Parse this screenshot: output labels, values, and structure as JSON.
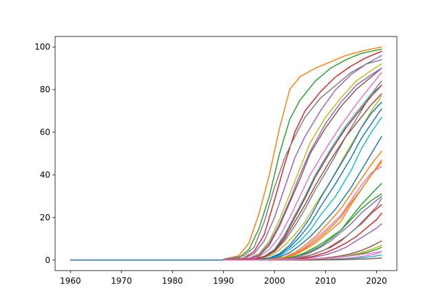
{
  "chart_data": {
    "type": "line",
    "title": "",
    "xlabel": "",
    "ylabel": "",
    "xlim": [
      1957,
      2024
    ],
    "ylim": [
      -4.9,
      104.9
    ],
    "grid": false,
    "legend": "none",
    "xticks": [
      {
        "value": 1960,
        "label": "1960"
      },
      {
        "value": 1970,
        "label": "1970"
      },
      {
        "value": 1980,
        "label": "1980"
      },
      {
        "value": 1990,
        "label": "1990"
      },
      {
        "value": 2000,
        "label": "2000"
      },
      {
        "value": 2010,
        "label": "2010"
      },
      {
        "value": 2020,
        "label": "2020"
      }
    ],
    "yticks": [
      {
        "value": 0,
        "label": "0"
      },
      {
        "value": 20,
        "label": "20"
      },
      {
        "value": 40,
        "label": "40"
      },
      {
        "value": 60,
        "label": "60"
      },
      {
        "value": 80,
        "label": "80"
      },
      {
        "value": 100,
        "label": "100"
      }
    ],
    "colors": [
      "#1f77b4",
      "#ff7f0e",
      "#2ca02c",
      "#d62728",
      "#9467bd",
      "#8c564b",
      "#e377c2",
      "#7f7f7f",
      "#bcbd22",
      "#17becf"
    ],
    "series": [
      {
        "x": [
          1960,
          1990
        ],
        "y": [
          0,
          0
        ]
      },
      {
        "x": [
          1990,
          1993,
          1995,
          1997,
          1999,
          2001,
          2003,
          2005,
          2008,
          2011,
          2014,
          2017,
          2021
        ],
        "y": [
          0.5,
          2,
          8,
          22,
          40,
          62,
          80,
          86,
          90,
          93,
          96,
          98,
          100
        ]
      },
      {
        "x": [
          1990,
          1993,
          1995,
          1997,
          1999,
          2001,
          2003,
          2005,
          2008,
          2011,
          2014,
          2017,
          2021
        ],
        "y": [
          0.3,
          1,
          5,
          15,
          30,
          50,
          66,
          75,
          84,
          90,
          94,
          97,
          99
        ]
      },
      {
        "x": [
          1990,
          1994,
          1996,
          1998,
          2000,
          2002,
          2004,
          2006,
          2009,
          2012,
          2015,
          2018,
          2021
        ],
        "y": [
          0.2,
          1,
          4,
          12,
          28,
          45,
          60,
          70,
          79,
          86,
          91,
          95,
          98
        ]
      },
      {
        "x": [
          1990,
          1994,
          1996,
          1998,
          2000,
          2002,
          2004,
          2006,
          2009,
          2012,
          2015,
          2018,
          2021
        ],
        "y": [
          0.2,
          0.8,
          3,
          9,
          20,
          34,
          48,
          58,
          70,
          80,
          87,
          92,
          96
        ]
      },
      {
        "x": [
          1990,
          1995,
          1997,
          1999,
          2001,
          2003,
          2005,
          2007,
          2010,
          2013,
          2016,
          2019,
          2021
        ],
        "y": [
          0.1,
          0.6,
          2,
          7,
          16,
          27,
          38,
          50,
          62,
          72,
          80,
          86,
          90
        ]
      },
      {
        "x": [
          1990,
          1995,
          1997,
          1999,
          2001,
          2003,
          2005,
          2007,
          2010,
          2013,
          2016,
          2019,
          2021
        ],
        "y": [
          0.1,
          0.5,
          1.5,
          5,
          11,
          20,
          30,
          40,
          52,
          63,
          73,
          82,
          88
        ]
      },
      {
        "x": [
          1990,
          1996,
          1998,
          2000,
          2002,
          2004,
          2006,
          2008,
          2011,
          2014,
          2017,
          2019,
          2021
        ],
        "y": [
          0.1,
          0.4,
          1.2,
          4,
          9,
          16,
          24,
          33,
          45,
          58,
          70,
          78,
          84
        ]
      },
      {
        "x": [
          1990,
          1996,
          1998,
          2000,
          2002,
          2004,
          2006,
          2008,
          2011,
          2014,
          2017,
          2019,
          2021
        ],
        "y": [
          0,
          0.3,
          1,
          3,
          7,
          12,
          18,
          26,
          37,
          50,
          62,
          70,
          77
        ]
      },
      {
        "x": [
          1990,
          1997,
          1999,
          2001,
          2003,
          2005,
          2007,
          2009,
          2012,
          2015,
          2017,
          2019,
          2021
        ],
        "y": [
          0,
          0.3,
          0.8,
          2,
          5,
          9,
          14,
          21,
          30,
          42,
          52,
          60,
          67
        ]
      },
      {
        "x": [
          1990,
          1997,
          1999,
          2001,
          2003,
          2005,
          2007,
          2009,
          2012,
          2015,
          2017,
          2019,
          2021
        ],
        "y": [
          0,
          0.2,
          0.6,
          1.5,
          3.5,
          7,
          11,
          16,
          24,
          34,
          42,
          50,
          58
        ]
      },
      {
        "x": [
          1990,
          1998,
          2000,
          2002,
          2004,
          2006,
          2008,
          2010,
          2013,
          2015,
          2017,
          2019,
          2021
        ],
        "y": [
          0,
          0.2,
          0.5,
          1,
          2.5,
          5,
          8,
          12,
          18,
          26,
          33,
          40,
          46
        ]
      },
      {
        "x": [
          1990,
          1998,
          2000,
          2002,
          2004,
          2006,
          2008,
          2010,
          2013,
          2015,
          2017,
          2019,
          2021
        ],
        "y": [
          0,
          0.1,
          0.3,
          0.8,
          1.8,
          3.5,
          6,
          9,
          14,
          20,
          26,
          31,
          36
        ]
      },
      {
        "x": [
          1990,
          1999,
          2001,
          2003,
          2005,
          2007,
          2009,
          2011,
          2013,
          2015,
          2017,
          2019,
          2021
        ],
        "y": [
          0,
          0.1,
          0.2,
          0.5,
          1.2,
          2.3,
          4,
          6,
          9,
          13,
          17,
          22,
          26
        ]
      },
      {
        "x": [
          1990,
          2000,
          2002,
          2004,
          2006,
          2008,
          2010,
          2012,
          2014,
          2016,
          2018,
          2020,
          2021
        ],
        "y": [
          0,
          0.1,
          0.2,
          0.4,
          0.8,
          1.5,
          2.5,
          4,
          6,
          9,
          12,
          15,
          17
        ]
      },
      {
        "x": [
          1990,
          2000,
          2003,
          2006,
          2009,
          2011,
          2013,
          2015,
          2017,
          2019,
          2021
        ],
        "y": [
          0,
          0.1,
          0.2,
          0.4,
          0.8,
          1.3,
          2,
          3,
          4.5,
          6.5,
          9
        ]
      },
      {
        "x": [
          1990,
          2001,
          2004,
          2007,
          2010,
          2012,
          2014,
          2016,
          2018,
          2020,
          2021
        ],
        "y": [
          0,
          0.1,
          0.1,
          0.2,
          0.4,
          0.6,
          0.9,
          1.3,
          2,
          3,
          4
        ]
      },
      {
        "x": [
          1990,
          1994,
          1996,
          1998,
          2000,
          2002,
          2004,
          2006,
          2009,
          2012,
          2015,
          2018,
          2021
        ],
        "y": [
          0.4,
          2,
          6,
          18,
          34,
          48,
          58,
          67,
          76,
          82,
          88,
          92,
          94
        ]
      },
      {
        "x": [
          1990,
          1995,
          1997,
          1999,
          2001,
          2003,
          2005,
          2007,
          2010,
          2013,
          2016,
          2019,
          2021
        ],
        "y": [
          0.2,
          1,
          3,
          9,
          19,
          31,
          43,
          55,
          67,
          76,
          84,
          89,
          92
        ]
      },
      {
        "x": [
          1990,
          1996,
          1998,
          2000,
          2002,
          2004,
          2006,
          2008,
          2011,
          2014,
          2017,
          2019,
          2021
        ],
        "y": [
          0.1,
          0.5,
          1.8,
          5,
          12,
          21,
          30,
          40,
          52,
          63,
          72,
          78,
          82
        ]
      },
      {
        "x": [
          1990,
          1997,
          1999,
          2001,
          2003,
          2005,
          2007,
          2009,
          2012,
          2015,
          2017,
          2019,
          2021
        ],
        "y": [
          0,
          0.3,
          1,
          2.5,
          6,
          11,
          17,
          25,
          36,
          48,
          57,
          64,
          71
        ]
      },
      {
        "x": [
          1990,
          1998,
          2000,
          2002,
          2004,
          2006,
          2008,
          2010,
          2013,
          2015,
          2017,
          2019,
          2021
        ],
        "y": [
          0,
          0.2,
          0.6,
          1.5,
          3.5,
          7,
          11,
          16,
          24,
          31,
          38,
          45,
          51
        ]
      },
      {
        "x": [
          1990,
          1999,
          2001,
          2003,
          2005,
          2007,
          2009,
          2011,
          2013,
          2015,
          2017,
          2019,
          2021
        ],
        "y": [
          0,
          0.1,
          0.3,
          0.8,
          2,
          4,
          6.5,
          10,
          14,
          19,
          24,
          28,
          31
        ]
      },
      {
        "x": [
          1990,
          2000,
          2002,
          2004,
          2006,
          2008,
          2010,
          2012,
          2014,
          2016,
          2018,
          2020,
          2021
        ],
        "y": [
          0,
          0.1,
          0.2,
          0.5,
          1,
          2,
          3.5,
          5.5,
          8,
          11,
          15,
          19,
          22
        ]
      },
      {
        "x": [
          1990,
          1995,
          1997,
          1999,
          2001,
          2003,
          2005,
          2007,
          2010,
          2013,
          2016,
          2019,
          2021
        ],
        "y": [
          0.2,
          0.8,
          2.5,
          8,
          17,
          28,
          40,
          51,
          64,
          74,
          82,
          87,
          90
        ]
      },
      {
        "x": [
          1990,
          1996,
          1998,
          2000,
          2002,
          2004,
          2006,
          2008,
          2011,
          2014,
          2017,
          2019,
          2021
        ],
        "y": [
          0.1,
          0.4,
          1.5,
          4,
          10,
          18,
          26,
          35,
          47,
          58,
          67,
          73,
          78
        ]
      },
      {
        "x": [
          1990,
          1998,
          2000,
          2002,
          2004,
          2006,
          2008,
          2010,
          2013,
          2015,
          2017,
          2019,
          2021
        ],
        "y": [
          0,
          0.2,
          0.5,
          1.2,
          3,
          6,
          10,
          14,
          21,
          28,
          35,
          41,
          44
        ]
      },
      {
        "x": [
          1990,
          2000,
          2002,
          2004,
          2006,
          2008,
          2010,
          2012,
          2014,
          2016,
          2018,
          2020,
          2021
        ],
        "y": [
          0,
          0.1,
          0.3,
          0.7,
          1.5,
          3,
          5,
          8,
          11,
          15,
          20,
          25,
          29
        ]
      },
      {
        "x": [
          1990,
          2002,
          2005,
          2008,
          2011,
          2013,
          2015,
          2017,
          2019,
          2021
        ],
        "y": [
          0,
          0.1,
          0.2,
          0.5,
          1,
          1.6,
          2.4,
          3.5,
          5,
          7
        ]
      },
      {
        "x": [
          1990,
          2003,
          2006,
          2009,
          2012,
          2015,
          2017,
          2019,
          2021
        ],
        "y": [
          0,
          0.1,
          0.1,
          0.2,
          0.4,
          0.7,
          1.1,
          1.6,
          2.4
        ]
      },
      {
        "x": [
          1990,
          1997,
          1999,
          2001,
          2003,
          2005,
          2007,
          2009,
          2012,
          2015,
          2017,
          2019,
          2021
        ],
        "y": [
          0,
          0.3,
          1,
          3,
          7,
          13,
          20,
          29,
          41,
          53,
          62,
          69,
          74
        ]
      },
      {
        "x": [
          1990,
          1998,
          2000,
          2002,
          2004,
          2006,
          2008,
          2010,
          2013,
          2015,
          2017,
          2019,
          2021
        ],
        "y": [
          0,
          0.2,
          0.5,
          1.2,
          2.8,
          5.5,
          9,
          13,
          20,
          27,
          33,
          40,
          47
        ]
      },
      {
        "x": [
          1990,
          2001,
          2004,
          2007,
          2010,
          2012,
          2014,
          2016,
          2018,
          2020,
          2021
        ],
        "y": [
          0,
          0.1,
          0.2,
          0.4,
          0.8,
          1.2,
          1.8,
          2.6,
          3.6,
          5,
          6
        ]
      },
      {
        "x": [
          1990,
          1996,
          1998,
          2000,
          2002,
          2004,
          2006,
          2008,
          2011,
          2014,
          2017,
          2019,
          2021
        ],
        "y": [
          0.1,
          0.5,
          1.6,
          4.5,
          11,
          20,
          29,
          39,
          51,
          62,
          71,
          77,
          82
        ]
      },
      {
        "x": [
          1990,
          1999,
          2001,
          2003,
          2005,
          2007,
          2009,
          2011,
          2013,
          2015,
          2017,
          2019,
          2021
        ],
        "y": [
          0,
          0.1,
          0.3,
          0.8,
          1.8,
          3.5,
          6,
          9,
          13,
          17,
          22,
          26,
          30
        ]
      },
      {
        "x": [
          1990,
          2005,
          2009,
          2013,
          2016,
          2019,
          2021
        ],
        "y": [
          0,
          0,
          0.1,
          0.2,
          0.4,
          0.7,
          1
        ]
      },
      {
        "x": [
          1990,
          2000,
          2005,
          2010,
          2015,
          2018,
          2021
        ],
        "y": [
          0,
          0.1,
          0.3,
          0.8,
          2,
          3,
          4
        ]
      }
    ]
  }
}
